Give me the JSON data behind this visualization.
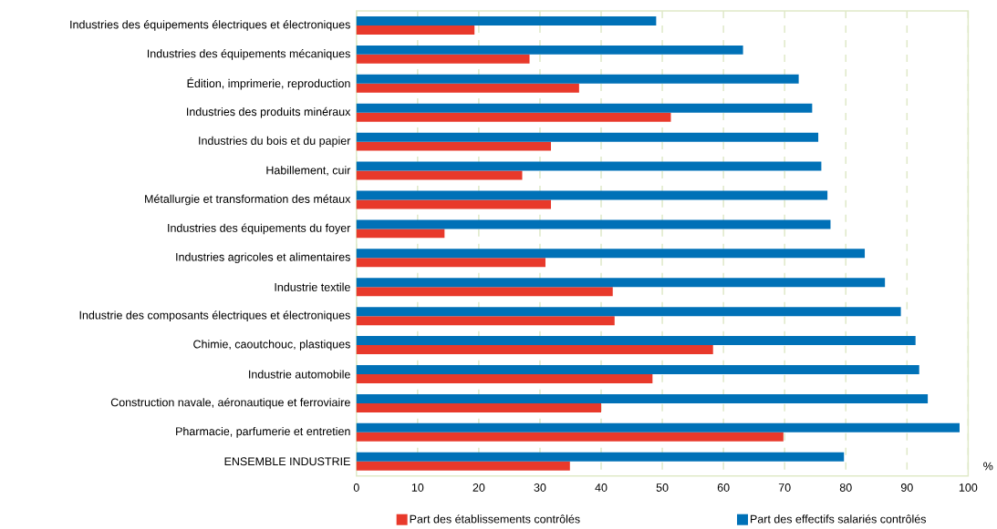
{
  "chart_data": {
    "type": "bar",
    "orientation": "horizontal",
    "xlabel": "%",
    "categories": [
      "Industries des équipements électriques et électroniques",
      "Industries des équipements mécaniques",
      "Édition, imprimerie, reproduction",
      "Industries des produits minéraux",
      "Industries du bois et du papier",
      "Habillement, cuir",
      "Métallurgie et transformation des métaux",
      "Industries des équipements du foyer",
      "Industries agricoles et alimentaires",
      "Industrie textile",
      "Industrie des composants électriques et électroniques",
      "Chimie, caoutchouc, plastiques",
      "Industrie automobile",
      "Construction navale, aéronautique et ferroviaire",
      "Pharmacie, parfumerie et entretien",
      "ENSEMBLE INDUSTRIE"
    ],
    "series": [
      {
        "name": "Part des établissements contrôlés",
        "color": "#e8392b",
        "values": [
          19.3,
          28.3,
          36.4,
          51.4,
          31.8,
          27.1,
          31.8,
          14.4,
          30.9,
          41.9,
          42.2,
          58.3,
          48.4,
          40.0,
          69.8,
          34.9
        ]
      },
      {
        "name": "Part des effectifs salariés contrôlés",
        "color": "#0071b7",
        "values": [
          49.0,
          63.2,
          72.3,
          74.5,
          75.5,
          76.0,
          77.0,
          77.5,
          83.1,
          86.4,
          89.0,
          91.4,
          92.0,
          93.4,
          98.6,
          79.7
        ]
      }
    ],
    "xlim": [
      0,
      100
    ],
    "xticks": [
      0,
      10,
      20,
      30,
      40,
      50,
      60,
      70,
      80,
      90,
      100
    ],
    "grid": "x",
    "legend": "bottom"
  }
}
